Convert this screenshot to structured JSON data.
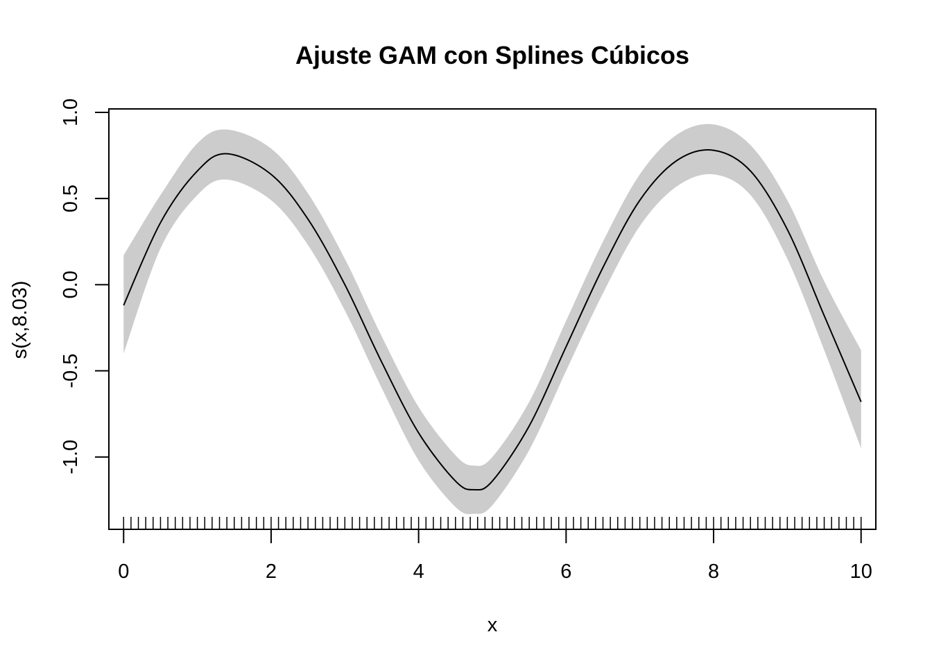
{
  "chart_data": {
    "type": "line",
    "title": "Ajuste GAM con Splines Cúbicos",
    "xlabel": "x",
    "ylabel": "s(x,8.03)",
    "xlim": [
      -0.2,
      10.2
    ],
    "ylim": [
      -1.42,
      1.02
    ],
    "x_ticks": [
      "0",
      "2",
      "4",
      "6",
      "8",
      "10"
    ],
    "y_ticks": [
      "-1.0",
      "-0.5",
      "0.0",
      "0.5",
      "1.0"
    ],
    "grid": false,
    "band_color": "#cccccc",
    "line_color": "#000000",
    "fit": {
      "x": [
        0,
        0.5,
        1.0,
        1.4,
        2.0,
        2.5,
        3.0,
        3.5,
        4.0,
        4.5,
        4.75,
        5.0,
        5.5,
        6.0,
        6.5,
        7.0,
        7.5,
        8.0,
        8.5,
        9.0,
        9.5,
        10.0
      ],
      "y": [
        -0.12,
        0.36,
        0.66,
        0.76,
        0.64,
        0.38,
        0.0,
        -0.45,
        -0.86,
        -1.14,
        -1.19,
        -1.14,
        -0.82,
        -0.36,
        0.1,
        0.49,
        0.72,
        0.78,
        0.66,
        0.32,
        -0.18,
        -0.68
      ],
      "lower": [
        -0.4,
        0.21,
        0.52,
        0.61,
        0.49,
        0.23,
        -0.15,
        -0.6,
        -1.02,
        -1.29,
        -1.33,
        -1.28,
        -0.96,
        -0.5,
        -0.05,
        0.34,
        0.57,
        0.64,
        0.52,
        0.15,
        -0.38,
        -0.95
      ],
      "upper": [
        0.17,
        0.52,
        0.82,
        0.9,
        0.79,
        0.53,
        0.15,
        -0.3,
        -0.71,
        -0.99,
        -1.05,
        -1.0,
        -0.68,
        -0.21,
        0.25,
        0.64,
        0.87,
        0.93,
        0.81,
        0.49,
        0.02,
        -0.38
      ]
    },
    "rug_count": 101,
    "rug_range": [
      0,
      10
    ]
  }
}
